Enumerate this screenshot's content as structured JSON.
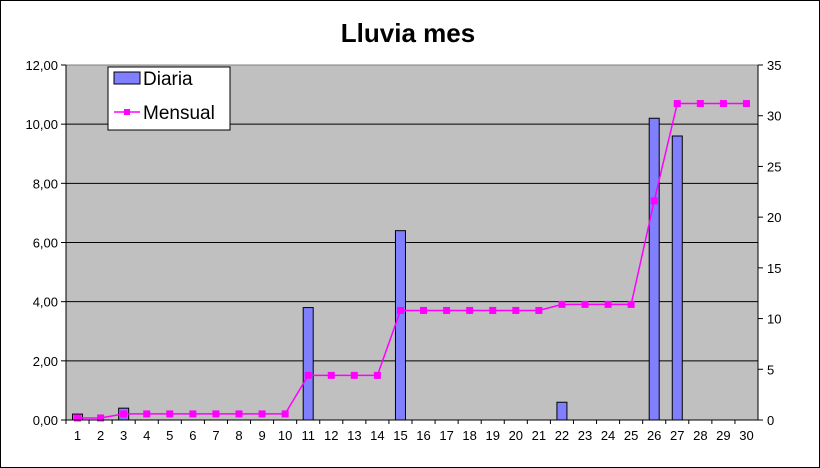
{
  "chart_data": {
    "type": "bar",
    "title": "Lluvia mes",
    "categories": [
      "1",
      "2",
      "3",
      "4",
      "5",
      "6",
      "7",
      "8",
      "9",
      "10",
      "11",
      "12",
      "13",
      "14",
      "15",
      "16",
      "17",
      "18",
      "19",
      "20",
      "21",
      "22",
      "23",
      "24",
      "25",
      "26",
      "27",
      "28",
      "29",
      "30"
    ],
    "series": [
      {
        "name": "Diaria",
        "type": "bar",
        "axis": "left",
        "color": "#8080ff",
        "values": [
          0.2,
          0,
          0.4,
          0,
          0,
          0,
          0,
          0,
          0,
          0,
          3.8,
          0,
          0,
          0,
          6.4,
          0,
          0,
          0,
          0,
          0,
          0,
          0.6,
          0,
          0,
          0,
          10.2,
          9.6,
          0,
          0,
          0
        ]
      },
      {
        "name": "Mensual",
        "type": "line",
        "axis": "right",
        "color": "#ff00ff",
        "values": [
          0.2,
          0.2,
          0.6,
          0.6,
          0.6,
          0.6,
          0.6,
          0.6,
          0.6,
          0.6,
          4.4,
          4.4,
          4.4,
          4.4,
          10.8,
          10.8,
          10.8,
          10.8,
          10.8,
          10.8,
          10.8,
          11.4,
          11.4,
          11.4,
          11.4,
          21.6,
          31.2,
          31.2,
          31.2,
          31.2
        ]
      }
    ],
    "ylim_left": [
      0,
      12
    ],
    "yticks_left": [
      "0,00",
      "2,00",
      "4,00",
      "6,00",
      "8,00",
      "10,00",
      "12,00"
    ],
    "ylim_right": [
      0,
      35
    ],
    "yticks_right": [
      "0",
      "5",
      "10",
      "15",
      "20",
      "25",
      "30",
      "35"
    ],
    "grid": true,
    "plot_background": "#c0c0c0",
    "legend_position": "top-left"
  }
}
